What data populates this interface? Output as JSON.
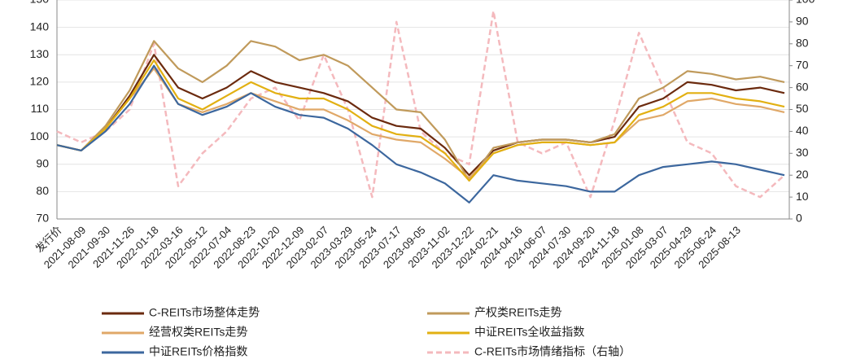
{
  "chart_data": {
    "type": "line",
    "categories": [
      "发行价",
      "2021-08-09",
      "2021-09-30",
      "2021-11-26",
      "2022-01-18",
      "2022-03-16",
      "2022-05-12",
      "2022-07-04",
      "2022-08-23",
      "2022-10-20",
      "2022-12-09",
      "2023-02-07",
      "2023-03-29",
      "2023-05-24",
      "2023-07-17",
      "2023-09-05",
      "2023-11-02",
      "2023-12-22",
      "2024-02-21",
      "2024-04-16",
      "2024-06-07",
      "2024-07-30",
      "2024-09-20",
      "2024-11-18",
      "2025-01-08",
      "2025-03-07",
      "2025-04-29",
      "2025-06-24",
      "2025-08-13",
      null,
      null
    ],
    "series": [
      {
        "name": "C-REITs市场整体走势",
        "color": "#6b2a0e",
        "values": [
          97,
          95,
          103,
          115,
          130,
          118,
          114,
          118,
          124,
          120,
          118,
          116,
          113,
          107,
          104,
          103,
          96,
          86,
          95,
          98,
          99,
          99,
          98,
          100,
          111,
          114,
          120,
          119,
          117,
          118,
          116
        ]
      },
      {
        "name": "产权类REITs走势",
        "color": "#c09a5b",
        "values": [
          97,
          95,
          104,
          117,
          135,
          125,
          120,
          126,
          135,
          133,
          128,
          130,
          126,
          118,
          110,
          109,
          99,
          84,
          96,
          98,
          99,
          99,
          98,
          101,
          114,
          118,
          124,
          123,
          121,
          122,
          120
        ]
      },
      {
        "name": "经营权类REITs走势",
        "color": "#e0a868",
        "values": [
          97,
          95,
          103,
          114,
          125,
          112,
          109,
          112,
          116,
          113,
          110,
          110,
          106,
          101,
          99,
          98,
          92,
          85,
          94,
          97,
          98,
          98,
          97,
          98,
          106,
          108,
          113,
          114,
          112,
          111,
          109
        ]
      },
      {
        "name": "中证REITs全收益指数",
        "color": "#e2b012",
        "values": [
          97,
          95,
          103,
          114,
          128,
          114,
          110,
          115,
          120,
          116,
          114,
          114,
          110,
          104,
          101,
          100,
          94,
          84,
          94,
          97,
          98,
          98,
          97,
          98,
          108,
          111,
          116,
          116,
          114,
          113,
          111
        ]
      },
      {
        "name": "中证REITs价格指数",
        "color": "#3c679e",
        "values": [
          97,
          95,
          102,
          112,
          126,
          112,
          108,
          111,
          116,
          111,
          108,
          107,
          103,
          97,
          90,
          87,
          83,
          76,
          86,
          84,
          83,
          82,
          80,
          80,
          86,
          89,
          90,
          91,
          90,
          88,
          86
        ]
      },
      {
        "name": "C-REITs市场情绪指标（右轴）",
        "color": "#f4b9bd",
        "dashed": true,
        "axis": "y2",
        "values": [
          40,
          35,
          40,
          50,
          80,
          15,
          30,
          40,
          55,
          60,
          45,
          75,
          50,
          10,
          90,
          40,
          30,
          25,
          95,
          35,
          30,
          35,
          10,
          45,
          85,
          60,
          35,
          30,
          15,
          10,
          20
        ]
      }
    ],
    "ylim": [
      70,
      150
    ],
    "yticks": [
      70,
      80,
      90,
      100,
      110,
      120,
      130,
      140,
      150
    ],
    "y2lim": [
      0,
      100
    ],
    "y2ticks": [
      0,
      10,
      20,
      30,
      40,
      50,
      60,
      70,
      80,
      90,
      100
    ],
    "grid": true
  }
}
